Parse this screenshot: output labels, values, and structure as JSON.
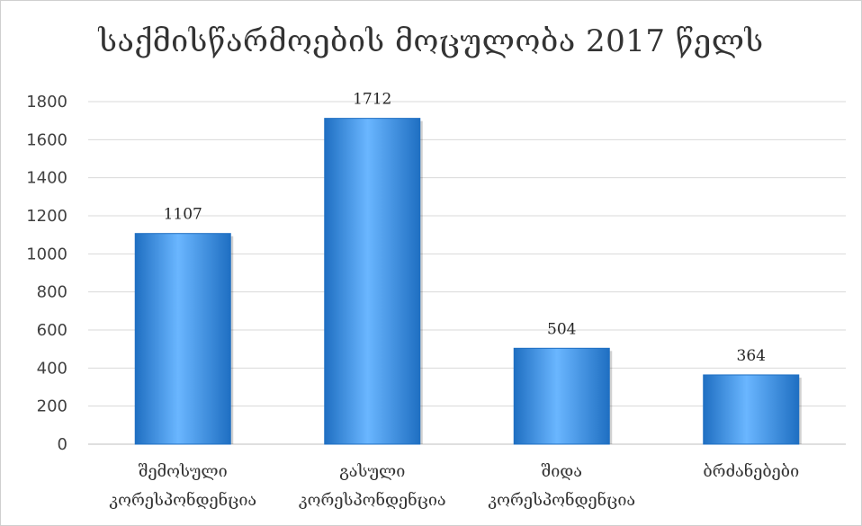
{
  "chart_data": {
    "type": "bar",
    "title": "საქმისწარმოების მოცულობა 2017 წელს",
    "categories": [
      [
        "შემოსული",
        "კორესპონდენცია"
      ],
      [
        "გასული",
        "კორესპონდენცია"
      ],
      [
        "შიდა",
        "კორესპონდენცია"
      ],
      [
        "ბრძანებები"
      ]
    ],
    "values": [
      1107,
      1712,
      504,
      364
    ],
    "data_labels": [
      "1107",
      "1712",
      "504",
      "364"
    ],
    "ylim": [
      0,
      1800
    ],
    "yticks": [
      0,
      200,
      400,
      600,
      800,
      1000,
      1200,
      1400,
      1600,
      1800
    ],
    "xlabel": "",
    "ylabel": "",
    "grid": true,
    "legend": "none",
    "colors": {
      "bar_light": "#6ab6ff",
      "bar_mid": "#3a93e6",
      "bar_dark": "#1f6fc2",
      "grid": "#d9d9d9",
      "axis": "#bfbfbf"
    }
  }
}
